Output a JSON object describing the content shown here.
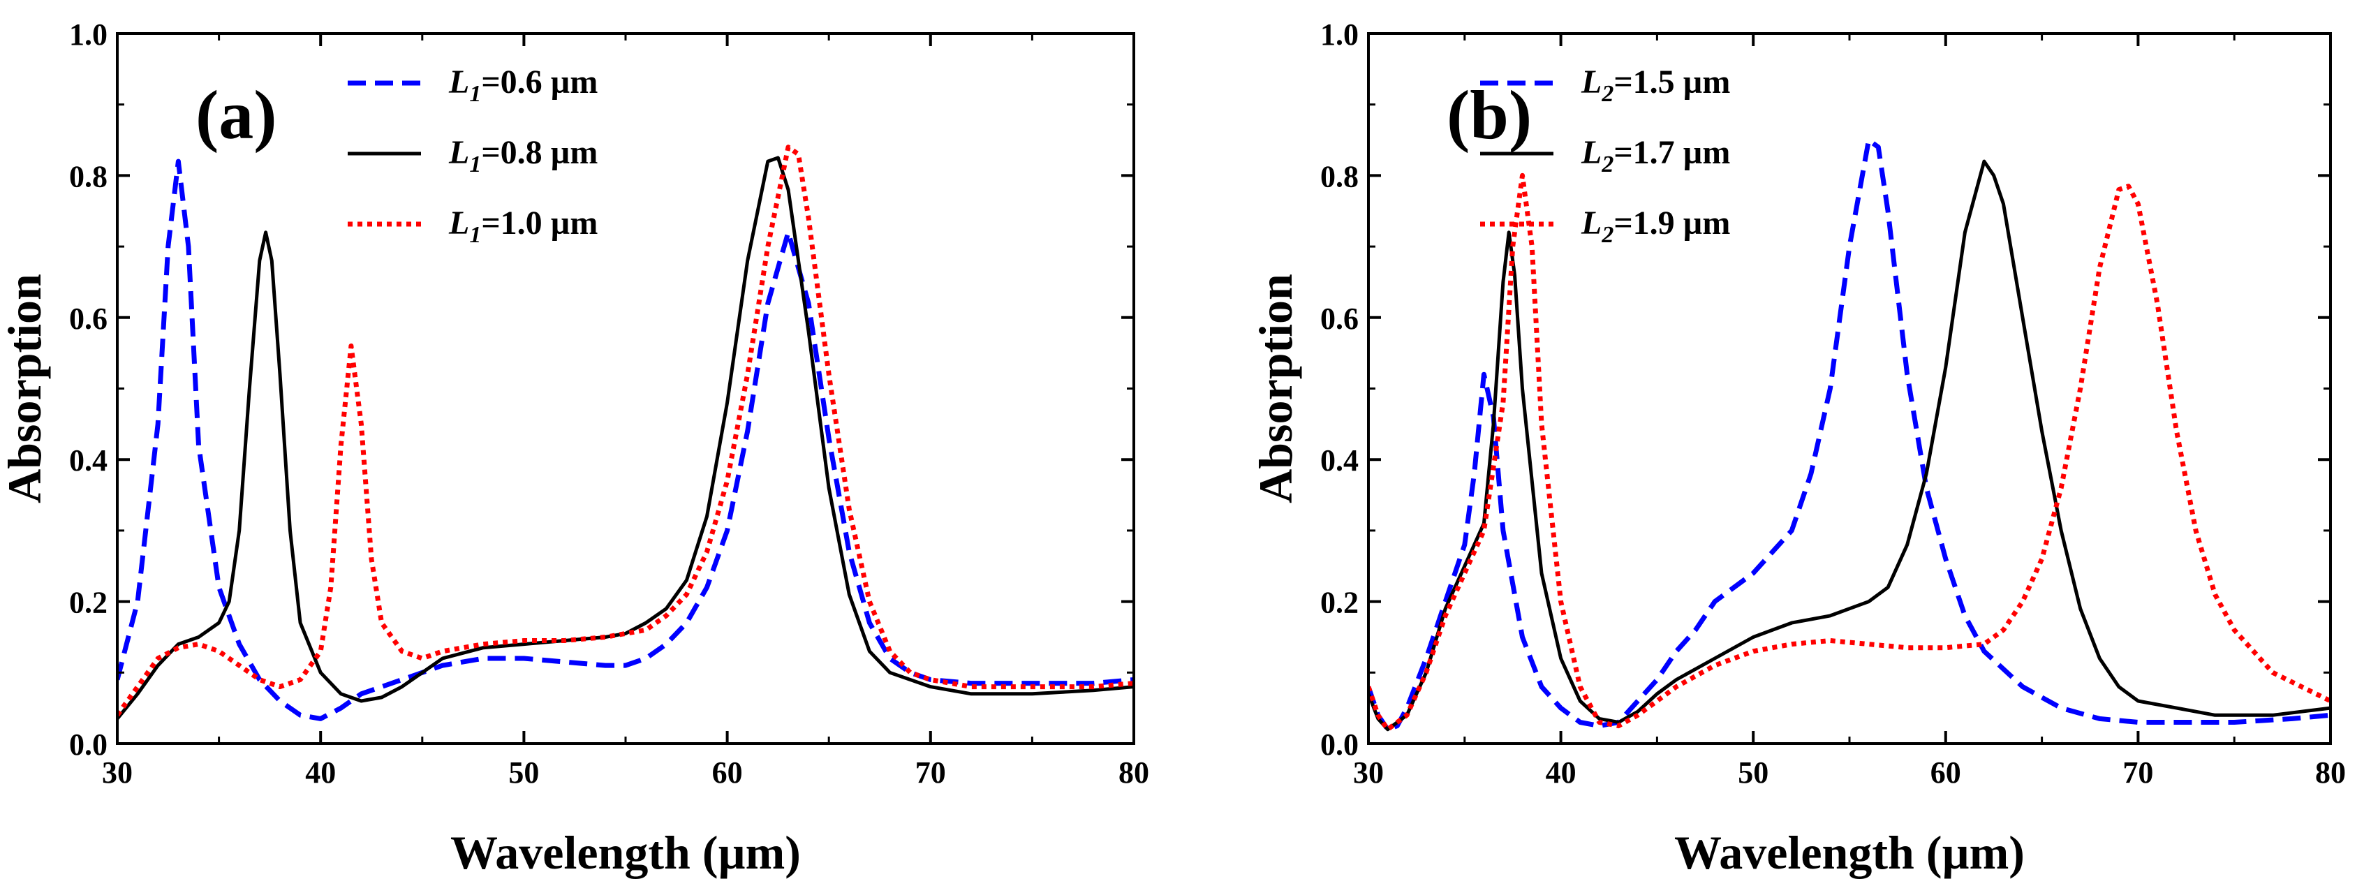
{
  "chart_data": [
    {
      "type": "line",
      "panel_label": "(a)",
      "xlabel": "Wavelength (µm)",
      "ylabel": "Absorption",
      "xlim": [
        30,
        80
      ],
      "ylim": [
        0.0,
        1.0
      ],
      "x_ticks": [
        "30",
        "40",
        "50",
        "60",
        "70",
        "80"
      ],
      "y_ticks": [
        "0.0",
        "0.2",
        "0.4",
        "0.6",
        "0.8",
        "1.0"
      ],
      "legend_position": "top-left",
      "series": [
        {
          "name": "L1=0.6 µm",
          "symbol": "L",
          "sub": "1",
          "value": "=0.6 µm",
          "color": "#0000ff",
          "style": "dashed",
          "points": [
            [
              30,
              0.09
            ],
            [
              31,
              0.2
            ],
            [
              32,
              0.45
            ],
            [
              32.5,
              0.7
            ],
            [
              33,
              0.82
            ],
            [
              33.5,
              0.7
            ],
            [
              34,
              0.42
            ],
            [
              35,
              0.22
            ],
            [
              36,
              0.14
            ],
            [
              37,
              0.09
            ],
            [
              38,
              0.06
            ],
            [
              39,
              0.04
            ],
            [
              40,
              0.035
            ],
            [
              41,
              0.05
            ],
            [
              42,
              0.07
            ],
            [
              44,
              0.09
            ],
            [
              46,
              0.11
            ],
            [
              48,
              0.12
            ],
            [
              50,
              0.12
            ],
            [
              52,
              0.115
            ],
            [
              54,
              0.11
            ],
            [
              55,
              0.11
            ],
            [
              56,
              0.12
            ],
            [
              57,
              0.14
            ],
            [
              58,
              0.17
            ],
            [
              59,
              0.22
            ],
            [
              60,
              0.3
            ],
            [
              61,
              0.44
            ],
            [
              62,
              0.62
            ],
            [
              63,
              0.72
            ],
            [
              64,
              0.62
            ],
            [
              65,
              0.43
            ],
            [
              66,
              0.27
            ],
            [
              67,
              0.17
            ],
            [
              68,
              0.12
            ],
            [
              69,
              0.1
            ],
            [
              70,
              0.09
            ],
            [
              72,
              0.085
            ],
            [
              75,
              0.085
            ],
            [
              78,
              0.085
            ],
            [
              80,
              0.09
            ]
          ]
        },
        {
          "name": "L1=0.8 µm",
          "symbol": "L",
          "sub": "1",
          "value": "=0.8 µm",
          "color": "#000000",
          "style": "solid",
          "points": [
            [
              30,
              0.035
            ],
            [
              31,
              0.07
            ],
            [
              32,
              0.11
            ],
            [
              33,
              0.14
            ],
            [
              34,
              0.15
            ],
            [
              35,
              0.17
            ],
            [
              35.5,
              0.2
            ],
            [
              36,
              0.3
            ],
            [
              36.5,
              0.5
            ],
            [
              37,
              0.68
            ],
            [
              37.3,
              0.72
            ],
            [
              37.6,
              0.68
            ],
            [
              38,
              0.52
            ],
            [
              38.5,
              0.3
            ],
            [
              39,
              0.17
            ],
            [
              40,
              0.1
            ],
            [
              41,
              0.07
            ],
            [
              42,
              0.06
            ],
            [
              43,
              0.065
            ],
            [
              44,
              0.08
            ],
            [
              45,
              0.1
            ],
            [
              46,
              0.12
            ],
            [
              48,
              0.135
            ],
            [
              50,
              0.14
            ],
            [
              52,
              0.145
            ],
            [
              54,
              0.15
            ],
            [
              55,
              0.155
            ],
            [
              56,
              0.17
            ],
            [
              57,
              0.19
            ],
            [
              58,
              0.23
            ],
            [
              59,
              0.32
            ],
            [
              60,
              0.48
            ],
            [
              61,
              0.68
            ],
            [
              62,
              0.82
            ],
            [
              62.5,
              0.825
            ],
            [
              63,
              0.78
            ],
            [
              64,
              0.58
            ],
            [
              65,
              0.36
            ],
            [
              66,
              0.21
            ],
            [
              67,
              0.13
            ],
            [
              68,
              0.1
            ],
            [
              70,
              0.08
            ],
            [
              72,
              0.07
            ],
            [
              75,
              0.07
            ],
            [
              78,
              0.075
            ],
            [
              80,
              0.08
            ]
          ]
        },
        {
          "name": "L1=1.0 µm",
          "symbol": "L",
          "sub": "1",
          "value": "=1.0 µm",
          "color": "#ff0000",
          "style": "dotted",
          "points": [
            [
              30,
              0.04
            ],
            [
              31,
              0.08
            ],
            [
              32,
              0.12
            ],
            [
              33,
              0.135
            ],
            [
              34,
              0.14
            ],
            [
              35,
              0.13
            ],
            [
              36,
              0.11
            ],
            [
              37,
              0.09
            ],
            [
              38,
              0.08
            ],
            [
              39,
              0.09
            ],
            [
              40,
              0.13
            ],
            [
              40.5,
              0.22
            ],
            [
              41,
              0.42
            ],
            [
              41.5,
              0.56
            ],
            [
              42,
              0.45
            ],
            [
              42.5,
              0.26
            ],
            [
              43,
              0.17
            ],
            [
              44,
              0.13
            ],
            [
              45,
              0.12
            ],
            [
              46,
              0.13
            ],
            [
              48,
              0.14
            ],
            [
              50,
              0.145
            ],
            [
              52,
              0.145
            ],
            [
              54,
              0.15
            ],
            [
              56,
              0.16
            ],
            [
              57,
              0.18
            ],
            [
              58,
              0.21
            ],
            [
              59,
              0.27
            ],
            [
              60,
              0.37
            ],
            [
              61,
              0.52
            ],
            [
              62,
              0.7
            ],
            [
              63,
              0.84
            ],
            [
              63.5,
              0.83
            ],
            [
              64,
              0.74
            ],
            [
              65,
              0.52
            ],
            [
              66,
              0.33
            ],
            [
              67,
              0.2
            ],
            [
              68,
              0.13
            ],
            [
              69,
              0.1
            ],
            [
              70,
              0.09
            ],
            [
              72,
              0.08
            ],
            [
              75,
              0.08
            ],
            [
              78,
              0.08
            ],
            [
              80,
              0.085
            ]
          ]
        }
      ]
    },
    {
      "type": "line",
      "panel_label": "(b)",
      "xlabel": "Wavelength (µm)",
      "ylabel": "Absorption",
      "xlim": [
        30,
        80
      ],
      "ylim": [
        0.0,
        1.0
      ],
      "x_ticks": [
        "30",
        "40",
        "50",
        "60",
        "70",
        "80"
      ],
      "y_ticks": [
        "0.0",
        "0.2",
        "0.4",
        "0.6",
        "0.8",
        "1.0"
      ],
      "legend_position": "top-left",
      "series": [
        {
          "name": "L2=1.5 µm",
          "symbol": "L",
          "sub": "2",
          "value": "=1.5 µm",
          "color": "#0000ff",
          "style": "dashed",
          "points": [
            [
              30,
              0.08
            ],
            [
              30.5,
              0.04
            ],
            [
              31,
              0.02
            ],
            [
              31.5,
              0.025
            ],
            [
              32,
              0.05
            ],
            [
              33,
              0.12
            ],
            [
              34,
              0.2
            ],
            [
              35,
              0.28
            ],
            [
              35.5,
              0.38
            ],
            [
              36,
              0.52
            ],
            [
              36.5,
              0.46
            ],
            [
              37,
              0.3
            ],
            [
              38,
              0.15
            ],
            [
              39,
              0.08
            ],
            [
              40,
              0.05
            ],
            [
              41,
              0.03
            ],
            [
              42,
              0.025
            ],
            [
              43,
              0.03
            ],
            [
              44,
              0.06
            ],
            [
              45,
              0.09
            ],
            [
              46,
              0.13
            ],
            [
              47,
              0.16
            ],
            [
              48,
              0.2
            ],
            [
              50,
              0.24
            ],
            [
              52,
              0.3
            ],
            [
              53,
              0.38
            ],
            [
              54,
              0.5
            ],
            [
              55,
              0.7
            ],
            [
              56,
              0.85
            ],
            [
              56.5,
              0.84
            ],
            [
              57,
              0.75
            ],
            [
              58,
              0.52
            ],
            [
              59,
              0.36
            ],
            [
              60,
              0.26
            ],
            [
              61,
              0.18
            ],
            [
              62,
              0.13
            ],
            [
              64,
              0.08
            ],
            [
              66,
              0.05
            ],
            [
              68,
              0.035
            ],
            [
              70,
              0.03
            ],
            [
              75,
              0.03
            ],
            [
              78,
              0.035
            ],
            [
              80,
              0.04
            ]
          ]
        },
        {
          "name": "L2=1.7 µm",
          "symbol": "L",
          "sub": "2",
          "value": "=1.7 µm",
          "color": "#000000",
          "style": "solid",
          "points": [
            [
              30,
              0.07
            ],
            [
              30.5,
              0.035
            ],
            [
              31,
              0.02
            ],
            [
              32,
              0.04
            ],
            [
              33,
              0.1
            ],
            [
              34,
              0.19
            ],
            [
              35,
              0.25
            ],
            [
              36,
              0.31
            ],
            [
              36.5,
              0.45
            ],
            [
              37,
              0.65
            ],
            [
              37.3,
              0.72
            ],
            [
              37.6,
              0.66
            ],
            [
              38,
              0.5
            ],
            [
              39,
              0.24
            ],
            [
              40,
              0.12
            ],
            [
              41,
              0.06
            ],
            [
              42,
              0.035
            ],
            [
              43,
              0.03
            ],
            [
              44,
              0.045
            ],
            [
              45,
              0.07
            ],
            [
              46,
              0.09
            ],
            [
              48,
              0.12
            ],
            [
              50,
              0.15
            ],
            [
              52,
              0.17
            ],
            [
              54,
              0.18
            ],
            [
              56,
              0.2
            ],
            [
              57,
              0.22
            ],
            [
              58,
              0.28
            ],
            [
              59,
              0.38
            ],
            [
              60,
              0.53
            ],
            [
              61,
              0.72
            ],
            [
              62,
              0.82
            ],
            [
              62.5,
              0.8
            ],
            [
              63,
              0.76
            ],
            [
              64,
              0.6
            ],
            [
              65,
              0.44
            ],
            [
              66,
              0.3
            ],
            [
              67,
              0.19
            ],
            [
              68,
              0.12
            ],
            [
              69,
              0.08
            ],
            [
              70,
              0.06
            ],
            [
              72,
              0.05
            ],
            [
              74,
              0.04
            ],
            [
              77,
              0.04
            ],
            [
              80,
              0.05
            ]
          ]
        },
        {
          "name": "L2=1.9 µm",
          "symbol": "L",
          "sub": "2",
          "value": "=1.9 µm",
          "color": "#ff0000",
          "style": "dotted",
          "points": [
            [
              30,
              0.08
            ],
            [
              30.5,
              0.04
            ],
            [
              31,
              0.02
            ],
            [
              32,
              0.04
            ],
            [
              33,
              0.1
            ],
            [
              34,
              0.18
            ],
            [
              35,
              0.24
            ],
            [
              36,
              0.3
            ],
            [
              37,
              0.48
            ],
            [
              37.5,
              0.7
            ],
            [
              38,
              0.8
            ],
            [
              38.5,
              0.7
            ],
            [
              39,
              0.45
            ],
            [
              40,
              0.2
            ],
            [
              41,
              0.08
            ],
            [
              42,
              0.03
            ],
            [
              43,
              0.025
            ],
            [
              44,
              0.04
            ],
            [
              45,
              0.06
            ],
            [
              46,
              0.08
            ],
            [
              48,
              0.11
            ],
            [
              50,
              0.13
            ],
            [
              52,
              0.14
            ],
            [
              54,
              0.145
            ],
            [
              56,
              0.14
            ],
            [
              58,
              0.135
            ],
            [
              60,
              0.135
            ],
            [
              62,
              0.14
            ],
            [
              63,
              0.16
            ],
            [
              64,
              0.2
            ],
            [
              65,
              0.26
            ],
            [
              66,
              0.36
            ],
            [
              67,
              0.5
            ],
            [
              68,
              0.67
            ],
            [
              69,
              0.78
            ],
            [
              69.5,
              0.785
            ],
            [
              70,
              0.76
            ],
            [
              71,
              0.62
            ],
            [
              72,
              0.44
            ],
            [
              73,
              0.3
            ],
            [
              74,
              0.21
            ],
            [
              75,
              0.16
            ],
            [
              77,
              0.1
            ],
            [
              80,
              0.06
            ]
          ]
        }
      ]
    }
  ]
}
